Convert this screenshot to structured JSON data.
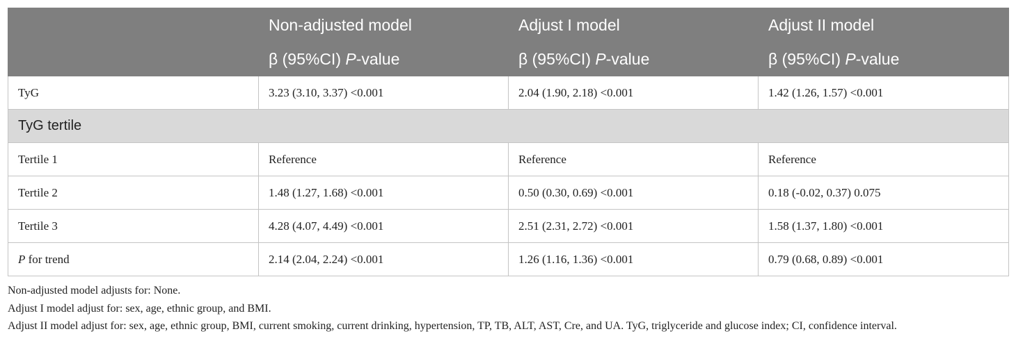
{
  "table": {
    "columns": [
      "Non-adjusted model",
      "Adjust I model",
      "Adjust II model"
    ],
    "subheader": [
      {
        "text": "β (95%CI) ",
        "italic": "P",
        "rest": "-value"
      },
      {
        "text": "β (95%CI) ",
        "italic": "P",
        "rest": "-value"
      },
      {
        "text": "β (95%CI) ",
        "italic": "P",
        "rest": "-value"
      }
    ],
    "rows": [
      {
        "label": "TyG",
        "cells": [
          "3.23 (3.10, 3.37) <0.001",
          "2.04 (1.90, 2.18) <0.001",
          "1.42 (1.26, 1.57) <0.001"
        ]
      },
      {
        "group": "TyG tertile"
      },
      {
        "label": "Tertile 1",
        "cells": [
          "Reference",
          "Reference",
          "Reference"
        ]
      },
      {
        "label": "Tertile 2",
        "cells": [
          "1.48 (1.27, 1.68) <0.001",
          "0.50 (0.30, 0.69) <0.001",
          "0.18 (-0.02, 0.37) 0.075"
        ]
      },
      {
        "label": "Tertile 3",
        "cells": [
          "4.28 (4.07, 4.49) <0.001",
          "2.51 (2.31, 2.72) <0.001",
          "1.58 (1.37, 1.80) <0.001"
        ]
      },
      {
        "label_italic": "P",
        "label": " for trend",
        "cells": [
          "2.14 (2.04, 2.24) <0.001",
          "1.26 (1.16, 1.36) <0.001",
          "0.79 (0.68, 0.89) <0.001"
        ]
      }
    ]
  },
  "footnotes": [
    "Non-adjusted model adjusts for: None.",
    "Adjust I model adjust for: sex, age, ethnic group, and BMI.",
    "Adjust II model adjust for: sex, age, ethnic group, BMI, current smoking, current drinking, hypertension, TP, TB, ALT, AST, Cre, and UA. TyG, triglyceride and glucose index; CI, confidence interval."
  ]
}
